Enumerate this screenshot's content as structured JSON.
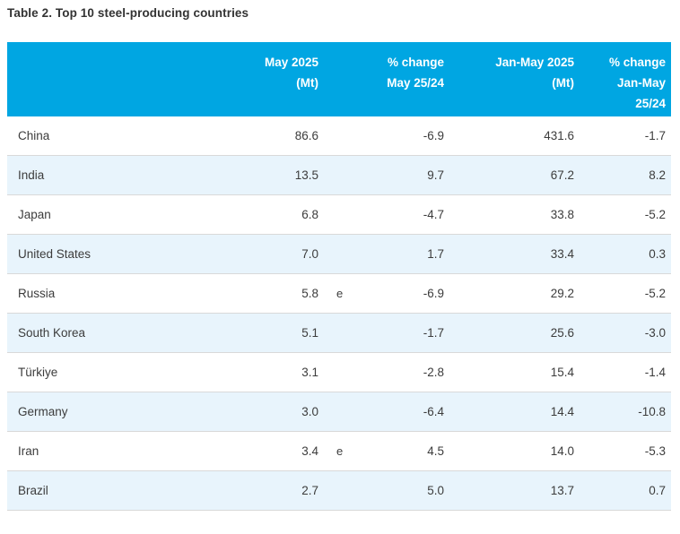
{
  "title": "Table 2. Top 10 steel-producing countries",
  "header": {
    "country": "",
    "col_may": [
      "May 2025",
      "(Mt)"
    ],
    "col_chg_may": [
      "% change",
      "May 25/24"
    ],
    "col_janmay": [
      "Jan-May 2025",
      "(Mt)"
    ],
    "col_chg_janmay": [
      "% change",
      "Jan-May",
      "25/24"
    ]
  },
  "colors": {
    "header_bg": "#00a6e2",
    "row_alt_bg": "#e8f4fc",
    "header_text": "#ffffff",
    "body_text": "#3c3c3c",
    "row_border": "#d9d9d9"
  },
  "footnote_marker_meaning": "e",
  "chart_data": {
    "type": "table",
    "title": "Table 2. Top 10 steel-producing countries",
    "column_headers": [
      "",
      "May 2025 (Mt)",
      "",
      "% change May 25/24",
      "Jan-May 2025 (Mt)",
      "% change Jan-May 25/24"
    ],
    "rows": [
      {
        "country": "China",
        "may_2025_mt": "86.6",
        "note": "",
        "pct_change_may": "-6.9",
        "jan_may_2025_mt": "431.6",
        "pct_change_jan_may": "-1.7"
      },
      {
        "country": "India",
        "may_2025_mt": "13.5",
        "note": "",
        "pct_change_may": "9.7",
        "jan_may_2025_mt": "67.2",
        "pct_change_jan_may": "8.2"
      },
      {
        "country": "Japan",
        "may_2025_mt": "6.8",
        "note": "",
        "pct_change_may": "-4.7",
        "jan_may_2025_mt": "33.8",
        "pct_change_jan_may": "-5.2"
      },
      {
        "country": "United States",
        "may_2025_mt": "7.0",
        "note": "",
        "pct_change_may": "1.7",
        "jan_may_2025_mt": "33.4",
        "pct_change_jan_may": "0.3"
      },
      {
        "country": "Russia",
        "may_2025_mt": "5.8",
        "note": "e",
        "pct_change_may": "-6.9",
        "jan_may_2025_mt": "29.2",
        "pct_change_jan_may": "-5.2"
      },
      {
        "country": "South Korea",
        "may_2025_mt": "5.1",
        "note": "",
        "pct_change_may": "-1.7",
        "jan_may_2025_mt": "25.6",
        "pct_change_jan_may": "-3.0"
      },
      {
        "country": "Türkiye",
        "may_2025_mt": "3.1",
        "note": "",
        "pct_change_may": "-2.8",
        "jan_may_2025_mt": "15.4",
        "pct_change_jan_may": "-1.4"
      },
      {
        "country": "Germany",
        "may_2025_mt": "3.0",
        "note": "",
        "pct_change_may": "-6.4",
        "jan_may_2025_mt": "14.4",
        "pct_change_jan_may": "-10.8"
      },
      {
        "country": "Iran",
        "may_2025_mt": "3.4",
        "note": "e",
        "pct_change_may": "4.5",
        "jan_may_2025_mt": "14.0",
        "pct_change_jan_may": "-5.3"
      },
      {
        "country": "Brazil",
        "may_2025_mt": "2.7",
        "note": "",
        "pct_change_may": "5.0",
        "jan_may_2025_mt": "13.7",
        "pct_change_jan_may": "0.7"
      }
    ]
  }
}
